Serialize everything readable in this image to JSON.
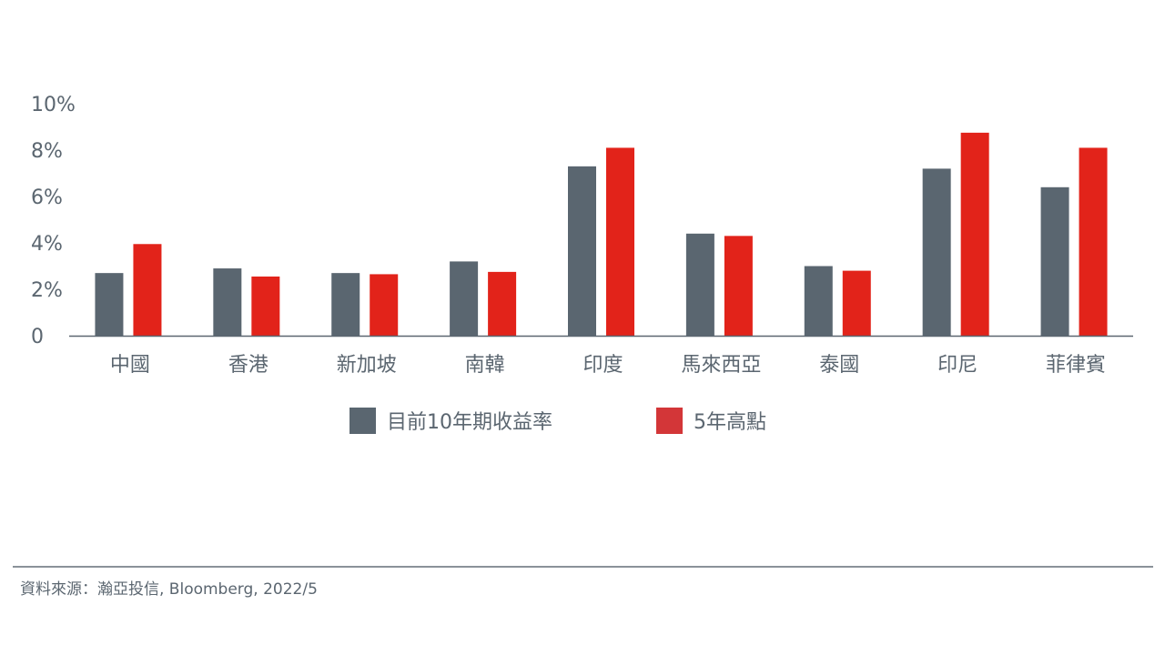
{
  "chart_data": {
    "type": "bar",
    "categories": [
      "中國",
      "香港",
      "新加坡",
      "南韓",
      "印度",
      "馬來西亞",
      "泰國",
      "印尼",
      "菲律賓"
    ],
    "series": [
      {
        "name": "目前10年期收益率",
        "color": "#5a6670",
        "values": [
          2.7,
          2.9,
          2.7,
          3.2,
          7.3,
          4.4,
          3.0,
          7.2,
          6.4
        ]
      },
      {
        "name": "5年高點",
        "color": "#e2231a",
        "values": [
          3.95,
          2.55,
          2.65,
          2.75,
          8.1,
          4.3,
          2.8,
          8.75,
          8.1
        ]
      }
    ],
    "ylim": [
      0,
      10
    ],
    "yticks": [
      "0",
      "2%",
      "4%",
      "6%",
      "8%",
      "10%"
    ],
    "ytick_values": [
      0,
      2,
      4,
      6,
      8,
      10
    ],
    "grid": false,
    "legend": "bottom-center"
  },
  "legend": {
    "items": [
      {
        "label": "目前10年期收益率",
        "color": "#5a6670"
      },
      {
        "label": "5年高點",
        "color": "#d33638"
      }
    ]
  },
  "footer": {
    "source": "資料來源：瀚亞投信, Bloomberg, 2022/5"
  }
}
